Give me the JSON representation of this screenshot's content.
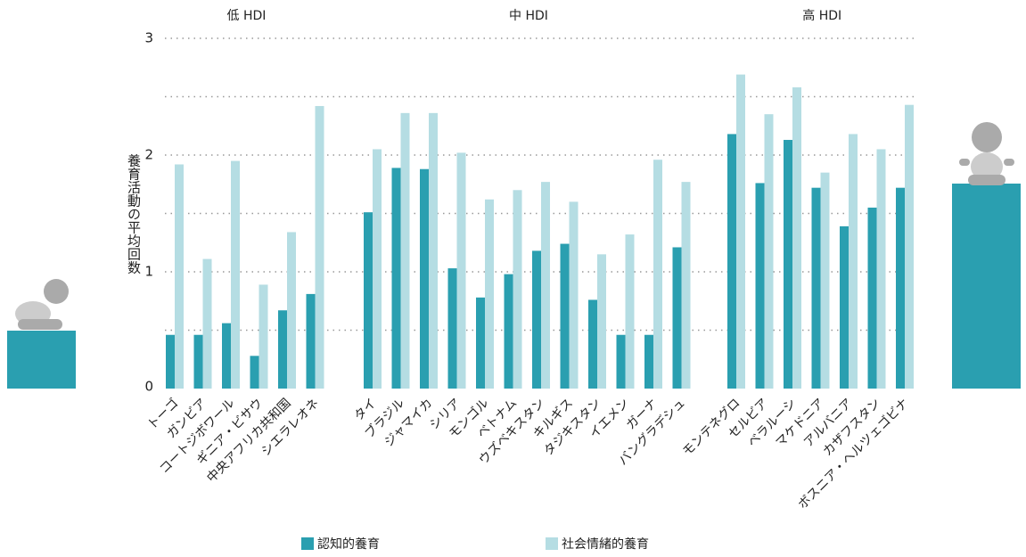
{
  "chart_data": {
    "type": "grouped-bar",
    "y_label": "養育活動の平均回数",
    "groups": [
      {
        "label": "低 HDI",
        "categories": [
          "トーゴ",
          "ガンビア",
          "コートジボワール",
          "ギニア・ビサウ",
          "中央アフリカ共和国",
          "シエラレオネ"
        ]
      },
      {
        "label": "中 HDI",
        "categories": [
          "タイ",
          "ブラジル",
          "ジャマイカ",
          "シリア",
          "モンゴル",
          "ベトナム",
          "ウズベキスタン",
          "キルギス",
          "タジキスタン",
          "イエメン",
          "ガーナ",
          "バングラデシュ"
        ]
      },
      {
        "label": "高 HDI",
        "categories": [
          "モンテネグロ",
          "セルビア",
          "ベラルーシ",
          "マケドニア",
          "アルバニア",
          "カザフスタン",
          "ボスニア・ヘルツェゴビナ"
        ]
      }
    ],
    "series": [
      {
        "name": "認知的養育",
        "color": "#2a9fb0",
        "values": [
          0.46,
          0.46,
          0.56,
          0.28,
          0.67,
          0.81,
          1.51,
          1.89,
          1.88,
          1.03,
          0.78,
          0.98,
          1.18,
          1.24,
          0.76,
          0.46,
          0.46,
          1.21,
          2.18,
          1.76,
          2.13,
          1.72,
          1.39,
          1.55,
          1.72
        ]
      },
      {
        "name": "社会情緒的養育",
        "color": "#b5dde3",
        "values": [
          1.92,
          1.11,
          1.95,
          0.89,
          1.34,
          2.42,
          2.05,
          2.36,
          2.36,
          2.02,
          1.62,
          1.7,
          1.77,
          1.6,
          1.15,
          1.32,
          1.96,
          1.77,
          2.69,
          2.35,
          2.58,
          1.85,
          2.18,
          2.05,
          2.43
        ]
      }
    ],
    "ylim": [
      0,
      3
    ],
    "yticks": [
      0,
      1,
      2,
      3
    ],
    "minor_yticks": [
      0.5,
      1.5,
      2.5
    ],
    "grid": true
  }
}
